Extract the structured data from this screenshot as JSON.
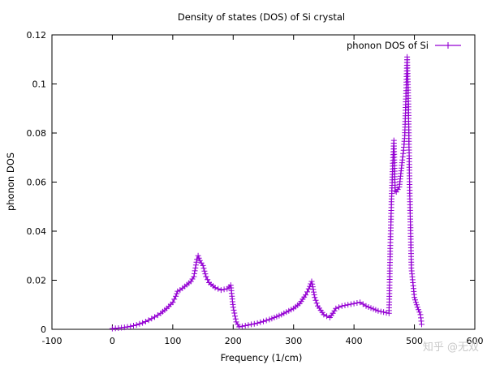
{
  "chart_data": {
    "type": "line",
    "title": "Density of states (DOS) of Si crystal",
    "xlabel": "Frequency (1/cm)",
    "ylabel": "phonon DOS",
    "xlim": [
      -100,
      600
    ],
    "ylim": [
      0,
      0.12
    ],
    "xticks": [
      -100,
      0,
      100,
      200,
      300,
      400,
      500,
      600
    ],
    "xtick_labels": [
      "-100",
      "0",
      "100",
      "200",
      "300",
      "400",
      "500",
      "600"
    ],
    "yticks": [
      0,
      0.02,
      0.04,
      0.06,
      0.08,
      0.1,
      0.12
    ],
    "ytick_labels": [
      "0",
      "0.02",
      "0.04",
      "0.06",
      "0.08",
      "0.1",
      "0.12"
    ],
    "grid": false,
    "legend_position": "top-right",
    "marker": "plus",
    "series": [
      {
        "name": "phonon DOS of Si",
        "color": "#9400d3",
        "x": [
          0,
          10,
          20,
          30,
          40,
          50,
          60,
          70,
          80,
          90,
          100,
          105,
          108,
          112,
          120,
          130,
          135,
          140,
          142,
          145,
          150,
          155,
          160,
          170,
          180,
          190,
          196,
          200,
          205,
          210,
          220,
          240,
          260,
          280,
          300,
          310,
          320,
          325,
          330,
          335,
          340,
          350,
          360,
          365,
          370,
          380,
          400,
          410,
          420,
          440,
          458,
          460,
          462,
          464,
          466,
          468,
          470,
          475,
          480,
          482,
          484,
          486,
          488,
          490,
          492,
          495,
          500,
          505,
          510,
          512
        ],
        "y": [
          0.0003,
          0.0005,
          0.0008,
          0.0012,
          0.0018,
          0.0026,
          0.0037,
          0.005,
          0.0065,
          0.0085,
          0.011,
          0.0135,
          0.0155,
          0.016,
          0.0175,
          0.0195,
          0.0215,
          0.0285,
          0.03,
          0.028,
          0.026,
          0.0215,
          0.019,
          0.017,
          0.016,
          0.0165,
          0.018,
          0.009,
          0.003,
          0.001,
          0.0015,
          0.0025,
          0.004,
          0.006,
          0.0085,
          0.0105,
          0.014,
          0.0165,
          0.0195,
          0.013,
          0.0095,
          0.006,
          0.0048,
          0.0065,
          0.0085,
          0.0095,
          0.0105,
          0.011,
          0.0095,
          0.0075,
          0.0065,
          0.033,
          0.052,
          0.0665,
          0.077,
          0.0565,
          0.056,
          0.058,
          0.069,
          0.073,
          0.079,
          0.095,
          0.111,
          0.093,
          0.059,
          0.025,
          0.013,
          0.009,
          0.006,
          0.002
        ]
      }
    ]
  },
  "watermark": "知乎 @无双"
}
